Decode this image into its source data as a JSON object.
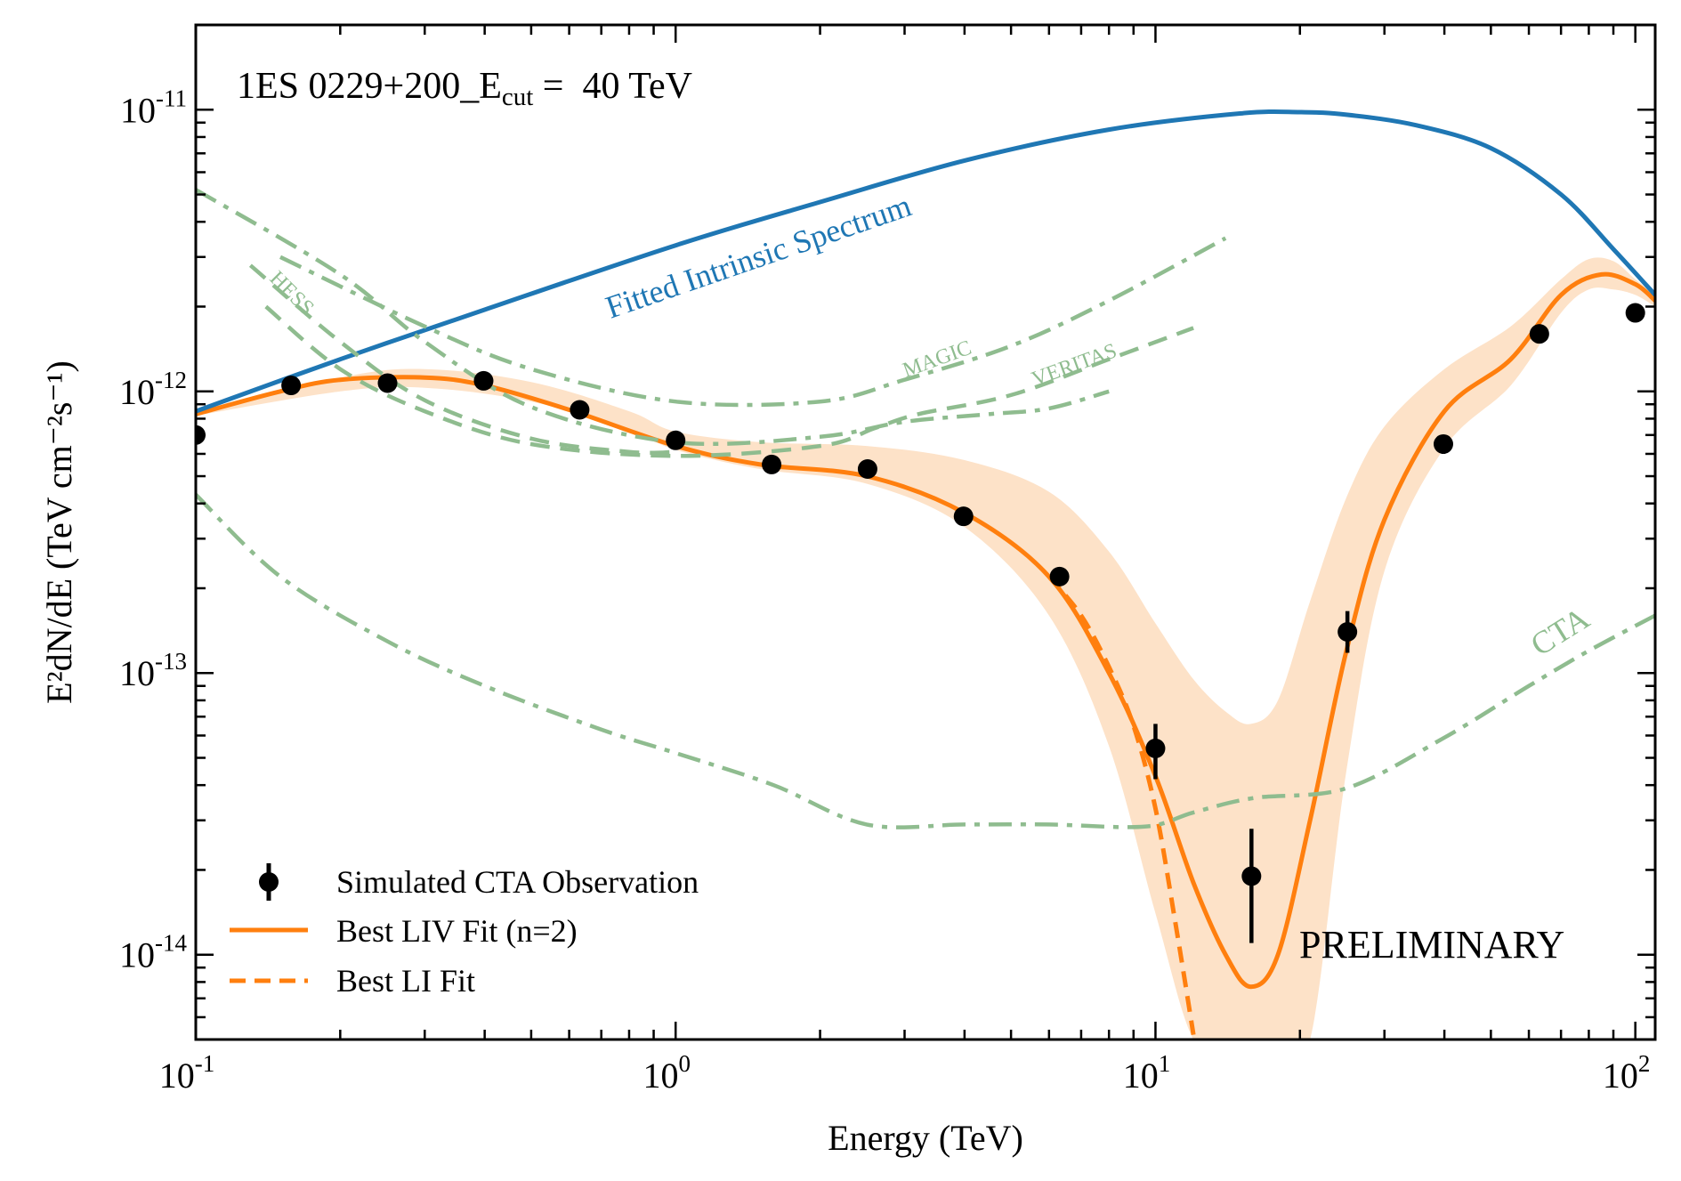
{
  "chart_data": {
    "type": "line",
    "scale": {
      "x": "log",
      "y": "log"
    },
    "title": "1ES 0229+200_E",
    "title_sub": "cut",
    "title_suffix": " =  40 TeV",
    "xlabel": "Energy (TeV)",
    "ylabel": "E²dN/dE (TeV cm⁻²s⁻¹)",
    "xlim": [
      0.1,
      110
    ],
    "ylim": [
      5e-15,
      2e-11
    ],
    "x_ticks": [
      {
        "value": 0.1,
        "base": "10",
        "exp": "-1"
      },
      {
        "value": 1,
        "base": "10",
        "exp": "0"
      },
      {
        "value": 10,
        "base": "10",
        "exp": "1"
      },
      {
        "value": 100,
        "base": "10",
        "exp": "2"
      }
    ],
    "y_ticks": [
      {
        "value": 1e-14,
        "base": "10",
        "exp": "-14"
      },
      {
        "value": 1e-13,
        "base": "10",
        "exp": "-13"
      },
      {
        "value": 1e-12,
        "base": "10",
        "exp": "-12"
      },
      {
        "value": 1e-11,
        "base": "10",
        "exp": "-11"
      }
    ],
    "watermark": "PRELIMINARY",
    "colors": {
      "intrinsic": "#1f77b4",
      "fit": "#ff7f0e",
      "band": "#fde2c8",
      "sensitivity": "#8fbc8f",
      "points": "#000000"
    },
    "series": [
      {
        "name": "Simulated CTA Observation",
        "kind": "points",
        "x": [
          0.1,
          0.158,
          0.251,
          0.398,
          0.631,
          1.0,
          1.585,
          2.512,
          3.981,
          6.31,
          10.0,
          15.85,
          25.12,
          39.81,
          63.1,
          100.0
        ],
        "y": [
          7e-13,
          1.05e-12,
          1.07e-12,
          1.09e-12,
          8.6e-13,
          6.7e-13,
          5.5e-13,
          5.3e-13,
          3.6e-13,
          2.2e-13,
          5.4e-14,
          1.9e-14,
          1.4e-13,
          6.5e-13,
          1.6e-12,
          1.9e-12
        ],
        "err_lo": [
          0,
          0,
          0,
          0,
          0,
          0,
          0,
          0,
          0,
          0,
          1.2e-14,
          8e-15,
          2.2e-14,
          5e-14,
          0,
          0
        ],
        "err_hi": [
          0,
          0,
          0,
          0,
          0,
          0,
          0,
          0,
          0,
          0,
          1.2e-14,
          9e-15,
          2.6e-14,
          5e-14,
          0,
          0
        ]
      },
      {
        "name": "Best LIV Fit (n=2)",
        "kind": "line",
        "x": [
          0.1,
          0.15,
          0.2,
          0.3,
          0.4,
          0.6,
          1.0,
          1.5,
          2.5,
          4.0,
          6.0,
          8.0,
          10.0,
          12.0,
          14.0,
          15.8,
          18.0,
          21.0,
          25.0,
          30.0,
          40.0,
          55.0,
          70.0,
          85.0,
          100.0,
          110.0
        ],
        "y": [
          8.3e-13,
          1e-12,
          1.1e-12,
          1.12e-12,
          1.05e-12,
          8.6e-13,
          6.4e-13,
          5.5e-13,
          5e-13,
          3.7e-13,
          2.2e-13,
          1e-13,
          4.3e-14,
          1.8e-14,
          1e-14,
          7.7e-15,
          1e-14,
          3e-14,
          1.2e-13,
          3.5e-13,
          8.5e-13,
          1.3e-12,
          2.2e-12,
          2.6e-12,
          2.4e-12,
          2.1e-12
        ]
      },
      {
        "name": "Best LI Fit",
        "kind": "dashed",
        "x": [
          6.0,
          7.0,
          8.0,
          9.0,
          10.0,
          11.0,
          12.0
        ],
        "y": [
          2.2e-13,
          1.6e-13,
          1.05e-13,
          6.5e-14,
          3.3e-14,
          1.3e-14,
          5.2e-15
        ]
      },
      {
        "name": "LIV fit uncertainty band",
        "kind": "band",
        "x": [
          0.1,
          0.2,
          0.3,
          0.5,
          0.8,
          1.0,
          1.5,
          2.5,
          4.0,
          6.0,
          8.0,
          10.0,
          12.0,
          14.0,
          15.8,
          18.0,
          21.0,
          25.0,
          30.0,
          40.0,
          55.0,
          70.0,
          80.0,
          90.0,
          100.0,
          110.0
        ],
        "upper": [
          8.4e-13,
          1.12e-12,
          1.2e-12,
          1.08e-12,
          8.5e-13,
          7.2e-13,
          6.6e-13,
          6.4e-13,
          5.7e-13,
          4.4e-13,
          2.7e-13,
          1.5e-13,
          9.5e-14,
          7.3e-14,
          6.6e-14,
          8e-14,
          1.8e-13,
          4.2e-13,
          7.5e-13,
          1.2e-12,
          1.7e-12,
          2.5e-12,
          2.95e-12,
          2.9e-12,
          2.5e-12,
          2.2e-12
        ],
        "lower": [
          8.2e-13,
          1e-12,
          1.03e-12,
          9.2e-13,
          7.3e-13,
          6.2e-13,
          5.3e-13,
          4.7e-13,
          3.3e-13,
          1.6e-13,
          5.5e-14,
          1.4e-14,
          5e-15,
          5e-15,
          5e-15,
          5e-15,
          5e-15,
          4.5e-14,
          2.3e-13,
          6.3e-13,
          1.05e-12,
          1.9e-12,
          2.3e-12,
          2.3e-12,
          2.2e-12,
          2e-12
        ]
      },
      {
        "name": "Fitted Intrinsic Spectrum",
        "kind": "line",
        "x": [
          0.1,
          0.2,
          0.4,
          1.0,
          2.0,
          4.0,
          8.0,
          15.0,
          20.0,
          25.0,
          35.0,
          50.0,
          70.0,
          90.0,
          110.0
        ],
        "y": [
          8.5e-13,
          1.3e-12,
          1.95e-12,
          3.3e-12,
          4.7e-12,
          6.6e-12,
          8.5e-12,
          9.7e-12,
          9.8e-12,
          9.6e-12,
          8.8e-12,
          7.3e-12,
          5e-12,
          3.2e-12,
          2.2e-12
        ]
      },
      {
        "name": "HESS",
        "kind": "dashed",
        "x": [
          0.13,
          0.2,
          0.3,
          0.5,
          0.8,
          1.0
        ],
        "y": [
          2.8e-12,
          1.5e-12,
          9.3e-13,
          6.8e-13,
          6.1e-13,
          6.1e-13
        ]
      },
      {
        "name": "HESS sensitivity (low-energy dash-dot)",
        "kind": "dashdot",
        "x": [
          0.1,
          0.2,
          0.3,
          0.5,
          1.0,
          2.0,
          3.0,
          4.5,
          6.0,
          8.0
        ],
        "y": [
          5.2e-12,
          2.6e-12,
          1.5e-12,
          8.8e-13,
          6.6e-13,
          6.9e-13,
          7.8e-13,
          8.3e-13,
          8.7e-13,
          1e-12
        ]
      },
      {
        "name": "MAGIC",
        "kind": "dashdot",
        "x": [
          0.15,
          0.3,
          0.5,
          1.0,
          2.0,
          3.0,
          5.0,
          8.0,
          14.0
        ],
        "y": [
          3e-12,
          1.7e-12,
          1.2e-12,
          9.2e-13,
          9.2e-13,
          1.1e-12,
          1.45e-12,
          2.1e-12,
          3.5e-12
        ]
      },
      {
        "name": "VERITAS",
        "kind": "dashed",
        "x": [
          0.14,
          0.2,
          0.3,
          0.5,
          1.0,
          2.0,
          2.6,
          3.2,
          5.0,
          8.0,
          12.0
        ],
        "y": [
          2e-12,
          1.2e-12,
          8.5e-13,
          6.5e-13,
          5.9e-13,
          6.4e-13,
          7.4e-13,
          8.3e-13,
          9.7e-13,
          1.3e-12,
          1.68e-12
        ]
      },
      {
        "name": "CTA",
        "kind": "dashdot",
        "x": [
          0.1,
          0.15,
          0.25,
          0.4,
          0.7,
          1.0,
          1.6,
          2.5,
          4.0,
          6.0,
          9.5,
          12.0,
          16.0,
          25.0,
          40.0,
          60.0,
          80.0,
          110.0
        ],
        "y": [
          4.3e-13,
          2.2e-13,
          1.3e-13,
          9e-14,
          6.3e-14,
          5.2e-14,
          4e-14,
          2.9e-14,
          2.9e-14,
          2.9e-14,
          2.85e-14,
          3.2e-14,
          3.6e-14,
          3.9e-14,
          5.9e-14,
          9e-14,
          1.2e-13,
          1.6e-13
        ]
      }
    ],
    "annotations": [
      {
        "text": "Fitted Intrinsic Spectrum",
        "series": "Fitted Intrinsic Spectrum"
      },
      {
        "text": "HESS",
        "series": "HESS"
      },
      {
        "text": "MAGIC",
        "series": "MAGIC"
      },
      {
        "text": "VERITAS",
        "series": "VERITAS"
      },
      {
        "text": "CTA",
        "series": "CTA"
      }
    ],
    "legend": {
      "position": "lower-left",
      "entries": [
        {
          "label": "Simulated CTA Observation",
          "marker": "point-errorbar"
        },
        {
          "label": "Best LIV Fit (n=2)",
          "marker": "solid-line"
        },
        {
          "label": "Best LI Fit",
          "marker": "dashed-line"
        }
      ]
    }
  }
}
